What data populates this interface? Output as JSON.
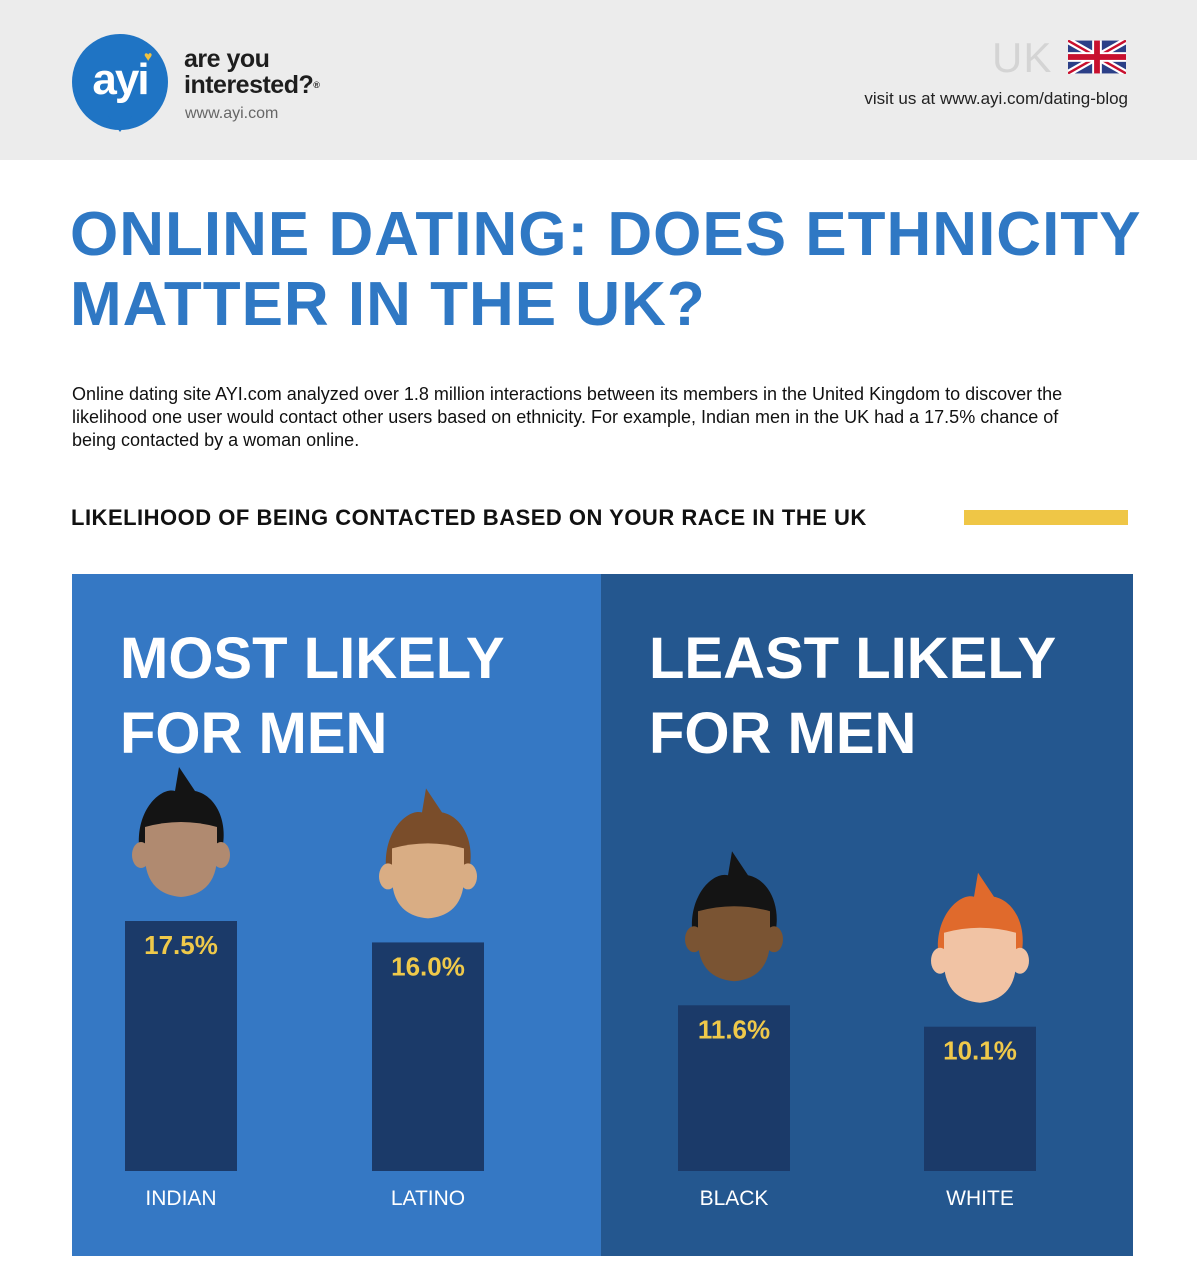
{
  "brand": {
    "logo_text": "ayi",
    "tagline_line1": "are you",
    "tagline_line2": "interested?",
    "tagline_mark": "®",
    "url": "www.ayi.com"
  },
  "header": {
    "country": "UK",
    "visit_text": "visit us at www.ayi.com/dating-blog"
  },
  "title_line1": "ONLINE DATING: DOES ETHNICITY",
  "title_line2": "MATTER IN THE UK?",
  "intro": "Online dating site AYI.com analyzed over 1.8 million interactions between its members in the United Kingdom to discover the likelihood one user would contact other users based on ethnicity. For example, Indian men in the UK had a 17.5% chance of being contacted by a woman online.",
  "colors": {
    "brand_blue": "#1f74c4",
    "title_blue": "#2f78c4",
    "panel_light": "#3578c4",
    "panel_dark": "#24578f",
    "bar": "#1b3a69",
    "label_yellow": "#efc94a",
    "accent_bar": "#efc646"
  },
  "chart_data": {
    "type": "bar",
    "title": "LIKELIHOOD OF BEING CONTACTED BASED ON YOUR RACE IN THE UK",
    "unit": "%",
    "ylim": [
      0,
      17.5
    ],
    "groups": [
      {
        "title_line1": "MOST LIKELY",
        "title_line2": "FOR MEN",
        "categories": [
          "INDIAN",
          "LATINO"
        ],
        "values": [
          17.5,
          16.0
        ],
        "labels": [
          "17.5%",
          "16.0%"
        ],
        "faces": [
          {
            "skin": "#b08a70",
            "hair": "#141414"
          },
          {
            "skin": "#d9ad84",
            "hair": "#7a4d2a"
          }
        ]
      },
      {
        "title_line1": "LEAST LIKELY",
        "title_line2": "FOR MEN",
        "categories": [
          "BLACK",
          "WHITE"
        ],
        "values": [
          11.6,
          10.1
        ],
        "labels": [
          "11.6%",
          "10.1%"
        ],
        "faces": [
          {
            "skin": "#7a5433",
            "hair": "#141414"
          },
          {
            "skin": "#f1c3a4",
            "hair": "#e06a2c"
          }
        ]
      }
    ]
  }
}
